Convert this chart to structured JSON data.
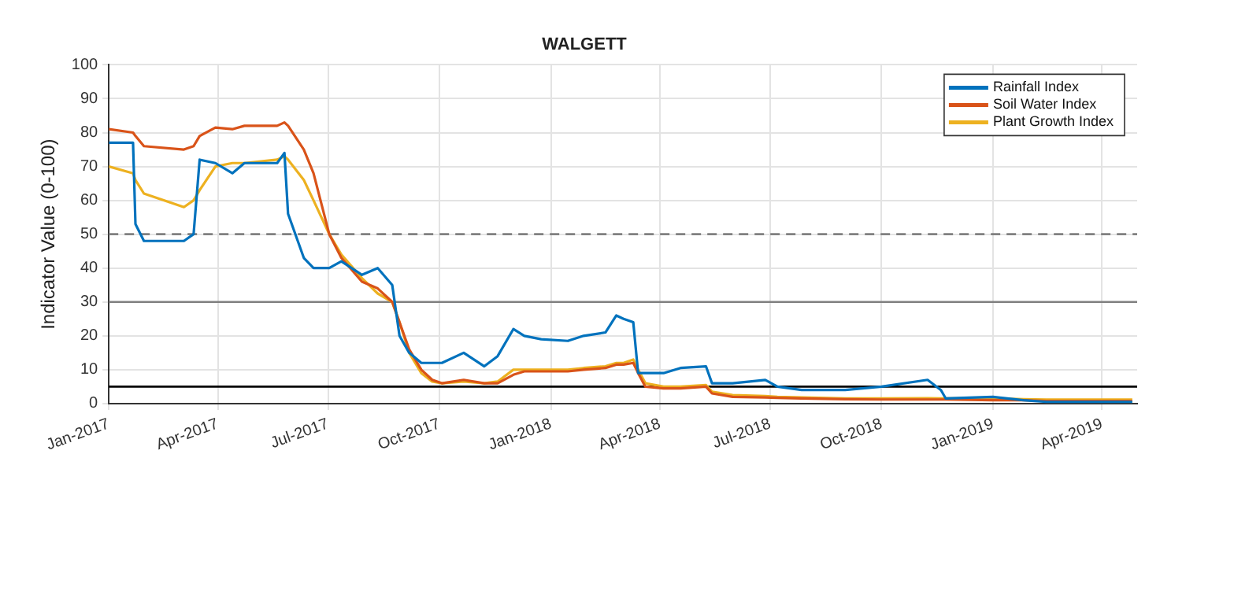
{
  "chart_data": {
    "type": "line",
    "title": "WALGETT",
    "ylabel": "Indicator Value (0-100)",
    "x": [
      "2017-01-01",
      "2017-01-21",
      "2017-01-23",
      "2017-01-30",
      "2017-03-04",
      "2017-03-12",
      "2017-03-17",
      "2017-03-30",
      "2017-04-13",
      "2017-04-23",
      "2017-05-20",
      "2017-05-26",
      "2017-05-29",
      "2017-06-11",
      "2017-06-19",
      "2017-07-02",
      "2017-07-12",
      "2017-07-29",
      "2017-08-11",
      "2017-08-23",
      "2017-08-29",
      "2017-09-06",
      "2017-09-16",
      "2017-09-25",
      "2017-10-03",
      "2017-10-21",
      "2017-11-07",
      "2017-11-18",
      "2017-12-01",
      "2017-12-10",
      "2017-12-24",
      "2018-01-15",
      "2018-01-28",
      "2018-02-15",
      "2018-02-24",
      "2018-03-02",
      "2018-03-10",
      "2018-03-14",
      "2018-03-20",
      "2018-04-04",
      "2018-04-18",
      "2018-05-09",
      "2018-05-14",
      "2018-05-31",
      "2018-06-27",
      "2018-07-07",
      "2018-07-27",
      "2018-09-01",
      "2018-10-01",
      "2018-11-08",
      "2018-11-19",
      "2018-11-23",
      "2019-01-01",
      "2019-01-26",
      "2019-02-14",
      "2019-04-26"
    ],
    "series": [
      {
        "name": "Rainfall Index",
        "color": "#0072bd",
        "values": [
          77,
          77,
          53,
          48,
          48,
          50,
          72,
          71,
          68,
          71,
          71,
          74,
          56,
          43,
          40,
          40,
          42,
          38,
          40,
          35,
          20,
          15,
          12,
          12,
          12,
          15,
          11,
          14,
          22,
          20,
          19,
          18.5,
          20,
          21,
          26,
          25,
          24,
          9,
          9,
          9,
          10.5,
          11,
          6,
          6,
          7,
          5,
          4,
          4,
          5,
          7,
          4,
          1.5,
          2,
          1,
          0.5,
          0.5
        ]
      },
      {
        "name": "Soil Water Index",
        "color": "#d95319",
        "values": [
          81,
          80,
          79,
          76,
          75,
          76,
          79,
          81.5,
          81,
          82,
          82,
          83,
          82,
          75,
          68,
          50,
          43,
          36,
          34,
          30,
          24,
          16,
          10,
          7,
          6,
          7,
          6,
          6,
          8.5,
          9.5,
          9.5,
          9.5,
          10,
          10.5,
          11.5,
          11.5,
          12,
          9,
          5,
          4.5,
          4.5,
          5,
          3,
          2,
          1.8,
          1.7,
          1.5,
          1.3,
          1.2,
          1.2,
          1.2,
          1.2,
          1,
          1,
          0.8,
          0.8
        ]
      },
      {
        "name": "Plant Growth Index",
        "color": "#edb120",
        "values": [
          70,
          68,
          66,
          62,
          58,
          60,
          63,
          70,
          71,
          71,
          72,
          73,
          72,
          66,
          60,
          50,
          44,
          37,
          32.5,
          30,
          24,
          15,
          9,
          6.5,
          6,
          6.5,
          6,
          6.5,
          10,
          10,
          10,
          10,
          10.5,
          11,
          12,
          12,
          13,
          10,
          6,
          5,
          5,
          5.5,
          3.5,
          2.5,
          2.2,
          2,
          1.8,
          1.5,
          1.5,
          1.6,
          1.5,
          1.5,
          1.5,
          1.3,
          1.2,
          1.2
        ]
      }
    ],
    "xlim": [
      "2017-01-01",
      "2019-04-30"
    ],
    "xticks": [
      {
        "value": "2017-01-01",
        "label": "Jan-2017"
      },
      {
        "value": "2017-04-01",
        "label": "Apr-2017"
      },
      {
        "value": "2017-07-01",
        "label": "Jul-2017"
      },
      {
        "value": "2017-10-01",
        "label": "Oct-2017"
      },
      {
        "value": "2018-01-01",
        "label": "Jan-2018"
      },
      {
        "value": "2018-04-01",
        "label": "Apr-2018"
      },
      {
        "value": "2018-07-01",
        "label": "Jul-2018"
      },
      {
        "value": "2018-10-01",
        "label": "Oct-2018"
      },
      {
        "value": "2019-01-01",
        "label": "Jan-2019"
      },
      {
        "value": "2019-04-01",
        "label": "Apr-2019"
      }
    ],
    "ylim": [
      0,
      100
    ],
    "yticks": [
      0,
      10,
      20,
      30,
      40,
      50,
      60,
      70,
      80,
      90,
      100
    ],
    "ref_lines": [
      {
        "axis": "y",
        "value": 50,
        "color": "#808080",
        "line_style": "dashed"
      },
      {
        "axis": "y",
        "value": 30,
        "color": "#808080",
        "line_style": "solid"
      },
      {
        "axis": "y",
        "value": 5,
        "color": "#000000",
        "line_style": "solid"
      }
    ],
    "grid": true,
    "legend": "top right",
    "marker": "none",
    "line_style": "solid"
  }
}
